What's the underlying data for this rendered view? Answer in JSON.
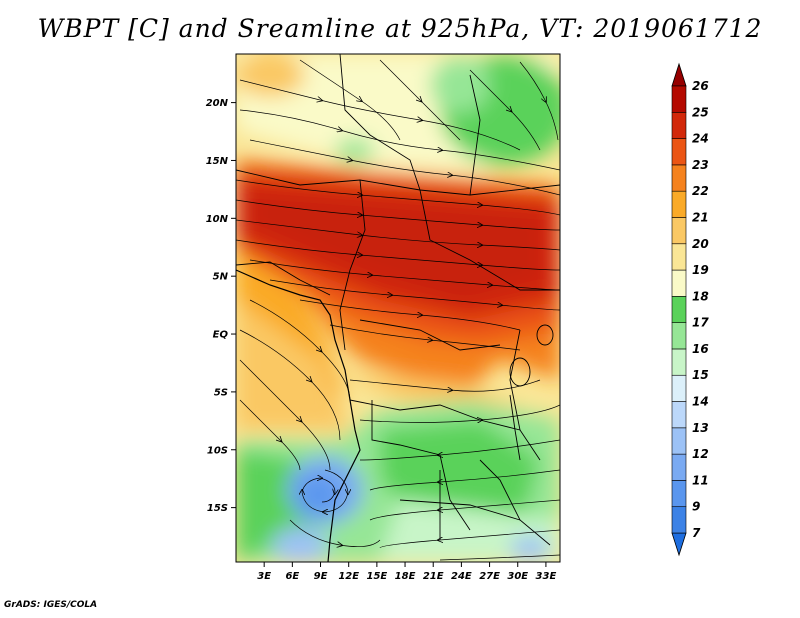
{
  "title": "WBPT [C] and Sreamline at 925hPa, VT: 2019061712",
  "credit": "GrADS: IGES/COLA",
  "map": {
    "lat_labels": [
      "20N",
      "15N",
      "10N",
      "5N",
      "EQ",
      "5S",
      "10S",
      "15S"
    ],
    "lat_values": [
      20,
      15,
      10,
      5,
      0,
      -5,
      -10,
      -15
    ],
    "lon_labels": [
      "3E",
      "6E",
      "9E",
      "12E",
      "15E",
      "18E",
      "21E",
      "24E",
      "27E",
      "30E",
      "33E"
    ],
    "lon_values": [
      3,
      6,
      9,
      12,
      15,
      18,
      21,
      24,
      27,
      30,
      33
    ],
    "lon_range": [
      0,
      34.5
    ],
    "lat_range": [
      -19.7,
      24.2
    ]
  },
  "colorbar": {
    "labels": [
      "7",
      "9",
      "11",
      "12",
      "13",
      "14",
      "15",
      "16",
      "17",
      "18",
      "19",
      "20",
      "21",
      "22",
      "23",
      "24",
      "25",
      "26"
    ],
    "colors": [
      "#1e6ee0",
      "#3c82e6",
      "#5a96ee",
      "#7aaaf2",
      "#9cc2f6",
      "#bcd8fa",
      "#dcf0fa",
      "#c8f5c8",
      "#96e696",
      "#5ad25a",
      "#fafac8",
      "#fae696",
      "#fac864",
      "#faaa28",
      "#f5821e",
      "#eb5514",
      "#d2280a",
      "#b40a00",
      "#960000"
    ]
  },
  "colors": {
    "warm_core": "#c8240a",
    "orange": "#f06e14",
    "yellow": "#fae696",
    "green": "#5ad25a",
    "blue": "#7aaaf2"
  }
}
